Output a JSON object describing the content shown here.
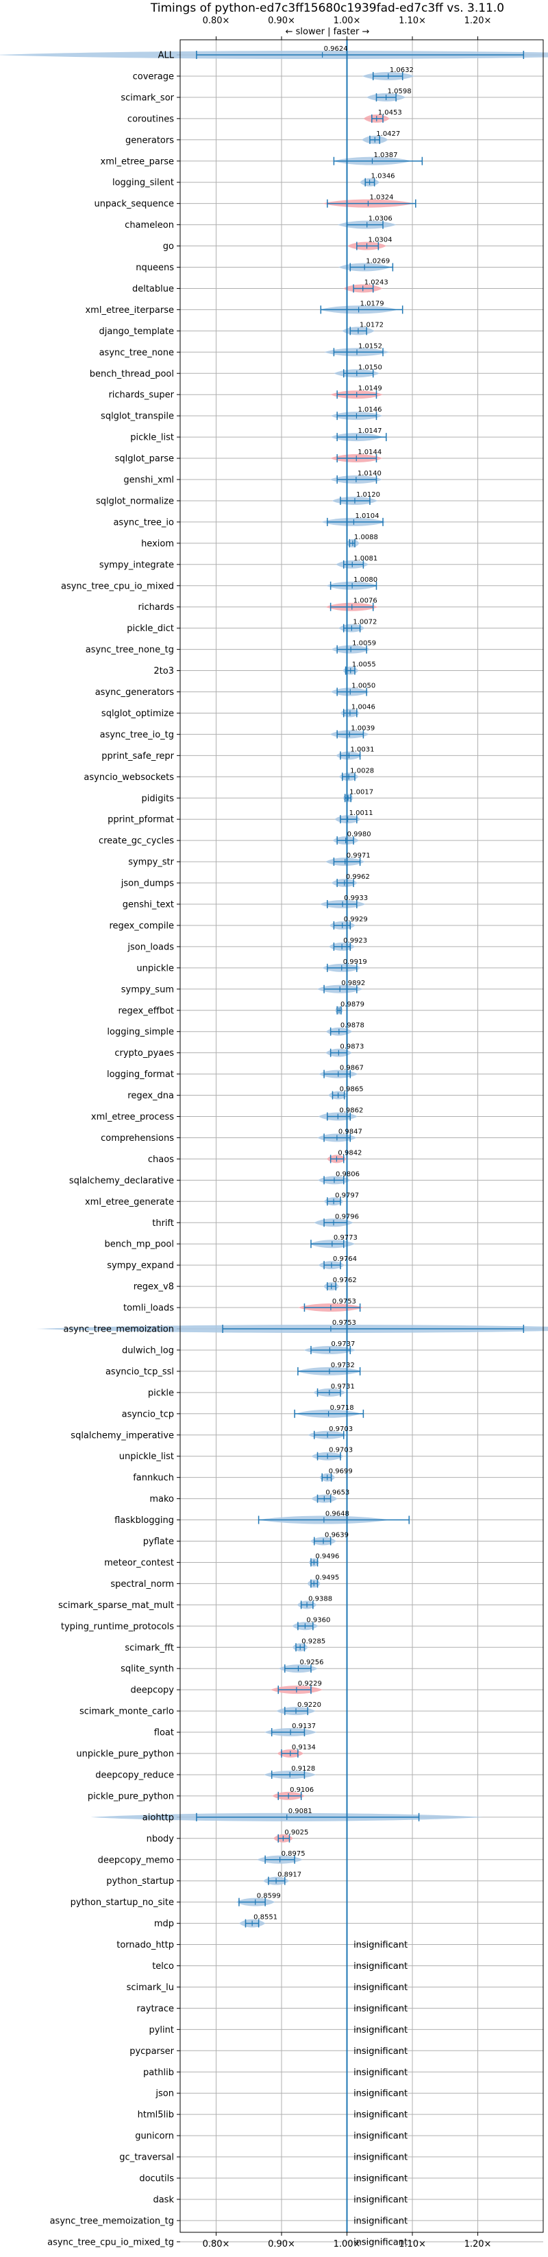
{
  "chart_data": {
    "type": "violin",
    "title": "Timings of python-ed7c3ff15680c1939fad-ed7c3ff vs. 3.11.0",
    "direction_label": "← slower | faster →",
    "x_ticks": [
      {
        "value": 0.8,
        "label": "0.80×"
      },
      {
        "value": 0.9,
        "label": "0.90×"
      },
      {
        "value": 1.0,
        "label": "1.00×"
      },
      {
        "value": 1.1,
        "label": "1.10×"
      },
      {
        "value": 1.2,
        "label": "1.20×"
      }
    ],
    "xlim": [
      0.745,
      1.3
    ],
    "reference_line": 1.0,
    "grid": true,
    "insignificant_label": "insignificant",
    "colors": {
      "violin_normal": "#a9c8e4",
      "violin_significant": "#f4a6ab",
      "accent": "#1f77b4",
      "grid": "#b0b0b0"
    },
    "benchmarks": [
      {
        "name": "ALL",
        "value": 0.9624,
        "label": "0.9624",
        "low": 0.77,
        "high": 1.27,
        "spread": 0.5,
        "sig": false
      },
      {
        "name": "coverage",
        "value": 1.0632,
        "label": "1.0632",
        "low": 1.04,
        "high": 1.085,
        "spread": 0.04,
        "sig": false
      },
      {
        "name": "scimark_sor",
        "value": 1.0598,
        "label": "1.0598",
        "low": 1.045,
        "high": 1.075,
        "spread": 0.03,
        "sig": false
      },
      {
        "name": "coroutines",
        "value": 1.0453,
        "label": "1.0453",
        "low": 1.038,
        "high": 1.055,
        "spread": 0.02,
        "sig": true
      },
      {
        "name": "generators",
        "value": 1.0427,
        "label": "1.0427",
        "low": 1.035,
        "high": 1.05,
        "spread": 0.02,
        "sig": false
      },
      {
        "name": "xml_etree_parse",
        "value": 1.0387,
        "label": "1.0387",
        "low": 0.98,
        "high": 1.115,
        "spread": 0.06,
        "sig": false
      },
      {
        "name": "logging_silent",
        "value": 1.0346,
        "label": "1.0346",
        "low": 1.028,
        "high": 1.042,
        "spread": 0.015,
        "sig": false
      },
      {
        "name": "unpack_sequence",
        "value": 1.0324,
        "label": "1.0324",
        "low": 0.97,
        "high": 1.105,
        "spread": 0.07,
        "sig": true
      },
      {
        "name": "chameleon",
        "value": 1.0306,
        "label": "1.0306",
        "low": 1.0,
        "high": 1.055,
        "spread": 0.045,
        "sig": false
      },
      {
        "name": "go",
        "value": 1.0304,
        "label": "1.0304",
        "low": 1.015,
        "high": 1.048,
        "spread": 0.03,
        "sig": true
      },
      {
        "name": "nqueens",
        "value": 1.0269,
        "label": "1.0269",
        "low": 1.005,
        "high": 1.07,
        "spread": 0.04,
        "sig": false
      },
      {
        "name": "deltablue",
        "value": 1.0243,
        "label": "1.0243",
        "low": 1.01,
        "high": 1.04,
        "spread": 0.03,
        "sig": true
      },
      {
        "name": "xml_etree_iterparse",
        "value": 1.0179,
        "label": "1.0179",
        "low": 0.96,
        "high": 1.085,
        "spread": 0.06,
        "sig": false
      },
      {
        "name": "django_template",
        "value": 1.0172,
        "label": "1.0172",
        "low": 1.005,
        "high": 1.03,
        "spread": 0.025,
        "sig": false
      },
      {
        "name": "async_tree_none",
        "value": 1.0152,
        "label": "1.0152",
        "low": 0.98,
        "high": 1.055,
        "spread": 0.05,
        "sig": false
      },
      {
        "name": "bench_thread_pool",
        "value": 1.015,
        "label": "1.0150",
        "low": 0.995,
        "high": 1.04,
        "spread": 0.035,
        "sig": false
      },
      {
        "name": "richards_super",
        "value": 1.0149,
        "label": "1.0149",
        "low": 0.985,
        "high": 1.045,
        "spread": 0.04,
        "sig": true
      },
      {
        "name": "sqlglot_transpile",
        "value": 1.0146,
        "label": "1.0146",
        "low": 0.985,
        "high": 1.045,
        "spread": 0.04,
        "sig": false
      },
      {
        "name": "pickle_list",
        "value": 1.0147,
        "label": "1.0147",
        "low": 0.985,
        "high": 1.06,
        "spread": 0.04,
        "sig": false
      },
      {
        "name": "sqlglot_parse",
        "value": 1.0144,
        "label": "1.0144",
        "low": 0.985,
        "high": 1.045,
        "spread": 0.04,
        "sig": true
      },
      {
        "name": "genshi_xml",
        "value": 1.014,
        "label": "1.0140",
        "low": 0.985,
        "high": 1.045,
        "spread": 0.04,
        "sig": false
      },
      {
        "name": "sqlglot_normalize",
        "value": 1.012,
        "label": "1.0120",
        "low": 0.99,
        "high": 1.035,
        "spread": 0.035,
        "sig": false
      },
      {
        "name": "async_tree_io",
        "value": 1.0104,
        "label": "1.0104",
        "low": 0.97,
        "high": 1.055,
        "spread": 0.05,
        "sig": false
      },
      {
        "name": "hexiom",
        "value": 1.0088,
        "label": "1.0088",
        "low": 1.004,
        "high": 1.012,
        "spread": 0.01,
        "sig": false
      },
      {
        "name": "sympy_integrate",
        "value": 1.0081,
        "label": "1.0081",
        "low": 0.995,
        "high": 1.025,
        "spread": 0.025,
        "sig": false
      },
      {
        "name": "async_tree_cpu_io_mixed",
        "value": 1.008,
        "label": "1.0080",
        "low": 0.975,
        "high": 1.045,
        "spread": 0.04,
        "sig": false
      },
      {
        "name": "richards",
        "value": 1.0076,
        "label": "1.0076",
        "low": 0.975,
        "high": 1.04,
        "spread": 0.04,
        "sig": true
      },
      {
        "name": "pickle_dict",
        "value": 1.0072,
        "label": "1.0072",
        "low": 0.995,
        "high": 1.02,
        "spread": 0.02,
        "sig": false
      },
      {
        "name": "async_tree_none_tg",
        "value": 1.0059,
        "label": "1.0059",
        "low": 0.985,
        "high": 1.03,
        "spread": 0.03,
        "sig": false
      },
      {
        "name": "2to3",
        "value": 1.0055,
        "label": "1.0055",
        "low": 0.998,
        "high": 1.012,
        "spread": 0.012,
        "sig": false
      },
      {
        "name": "async_generators",
        "value": 1.005,
        "label": "1.0050",
        "low": 0.985,
        "high": 1.03,
        "spread": 0.03,
        "sig": false
      },
      {
        "name": "sqlglot_optimize",
        "value": 1.0046,
        "label": "1.0046",
        "low": 0.995,
        "high": 1.015,
        "spread": 0.015,
        "sig": false
      },
      {
        "name": "async_tree_io_tg",
        "value": 1.0039,
        "label": "1.0039",
        "low": 0.985,
        "high": 1.025,
        "spread": 0.03,
        "sig": false
      },
      {
        "name": "pprint_safe_repr",
        "value": 1.0031,
        "label": "1.0031",
        "low": 0.99,
        "high": 1.02,
        "spread": 0.02,
        "sig": false
      },
      {
        "name": "asyncio_websockets",
        "value": 1.0028,
        "label": "1.0028",
        "low": 0.993,
        "high": 1.012,
        "spread": 0.015,
        "sig": false
      },
      {
        "name": "pidigits",
        "value": 1.0017,
        "label": "1.0017",
        "low": 0.997,
        "high": 1.006,
        "spread": 0.008,
        "sig": false
      },
      {
        "name": "pprint_pformat",
        "value": 1.0011,
        "label": "1.0011",
        "low": 0.99,
        "high": 1.015,
        "spread": 0.02,
        "sig": false
      },
      {
        "name": "create_gc_cycles",
        "value": 0.998,
        "label": "0.9980",
        "low": 0.985,
        "high": 1.01,
        "spread": 0.02,
        "sig": false
      },
      {
        "name": "sympy_str",
        "value": 0.9971,
        "label": "0.9971",
        "low": 0.98,
        "high": 1.02,
        "spread": 0.03,
        "sig": false
      },
      {
        "name": "json_dumps",
        "value": 0.9962,
        "label": "0.9962",
        "low": 0.985,
        "high": 1.01,
        "spread": 0.02,
        "sig": false
      },
      {
        "name": "genshi_text",
        "value": 0.9933,
        "label": "0.9933",
        "low": 0.97,
        "high": 1.015,
        "spread": 0.035,
        "sig": false
      },
      {
        "name": "regex_compile",
        "value": 0.9929,
        "label": "0.9929",
        "low": 0.98,
        "high": 1.005,
        "spread": 0.02,
        "sig": false
      },
      {
        "name": "json_loads",
        "value": 0.9923,
        "label": "0.9923",
        "low": 0.98,
        "high": 1.005,
        "spread": 0.02,
        "sig": false
      },
      {
        "name": "unpickle",
        "value": 0.9919,
        "label": "0.9919",
        "low": 0.97,
        "high": 1.015,
        "spread": 0.03,
        "sig": false
      },
      {
        "name": "sympy_sum",
        "value": 0.9892,
        "label": "0.9892",
        "low": 0.965,
        "high": 1.015,
        "spread": 0.035,
        "sig": false
      },
      {
        "name": "regex_effbot",
        "value": 0.9879,
        "label": "0.9879",
        "low": 0.985,
        "high": 0.991,
        "spread": 0.006,
        "sig": false
      },
      {
        "name": "logging_simple",
        "value": 0.9878,
        "label": "0.9878",
        "low": 0.975,
        "high": 1.0,
        "spread": 0.02,
        "sig": false
      },
      {
        "name": "crypto_pyaes",
        "value": 0.9873,
        "label": "0.9873",
        "low": 0.975,
        "high": 1.0,
        "spread": 0.02,
        "sig": false
      },
      {
        "name": "logging_format",
        "value": 0.9867,
        "label": "0.9867",
        "low": 0.965,
        "high": 1.005,
        "spread": 0.03,
        "sig": false
      },
      {
        "name": "regex_dna",
        "value": 0.9865,
        "label": "0.9865",
        "low": 0.978,
        "high": 0.996,
        "spread": 0.015,
        "sig": false
      },
      {
        "name": "xml_etree_process",
        "value": 0.9862,
        "label": "0.9862",
        "low": 0.97,
        "high": 1.005,
        "spread": 0.03,
        "sig": false
      },
      {
        "name": "comprehensions",
        "value": 0.9847,
        "label": "0.9847",
        "low": 0.965,
        "high": 1.005,
        "spread": 0.03,
        "sig": false
      },
      {
        "name": "chaos",
        "value": 0.9842,
        "label": "0.9842",
        "low": 0.975,
        "high": 0.995,
        "spread": 0.015,
        "sig": true
      },
      {
        "name": "sqlalchemy_declarative",
        "value": 0.9806,
        "label": "0.9806",
        "low": 0.965,
        "high": 0.995,
        "spread": 0.025,
        "sig": false
      },
      {
        "name": "xml_etree_generate",
        "value": 0.9797,
        "label": "0.9797",
        "low": 0.97,
        "high": 0.99,
        "spread": 0.015,
        "sig": false
      },
      {
        "name": "thrift",
        "value": 0.9796,
        "label": "0.9796",
        "low": 0.965,
        "high": 1.0,
        "spread": 0.03,
        "sig": false
      },
      {
        "name": "bench_mp_pool",
        "value": 0.9773,
        "label": "0.9773",
        "low": 0.945,
        "high": 0.995,
        "spread": 0.035,
        "sig": false
      },
      {
        "name": "sympy_expand",
        "value": 0.9764,
        "label": "0.9764",
        "low": 0.965,
        "high": 0.99,
        "spread": 0.02,
        "sig": false
      },
      {
        "name": "regex_v8",
        "value": 0.9762,
        "label": "0.9762",
        "low": 0.97,
        "high": 0.983,
        "spread": 0.012,
        "sig": false
      },
      {
        "name": "tomli_loads",
        "value": 0.9753,
        "label": "0.9753",
        "low": 0.935,
        "high": 1.02,
        "spread": 0.05,
        "sig": true
      },
      {
        "name": "async_tree_memoization",
        "value": 0.9753,
        "label": "0.9753",
        "low": 0.81,
        "high": 1.27,
        "spread": 0.45,
        "sig": false
      },
      {
        "name": "dulwich_log",
        "value": 0.9737,
        "label": "0.9737",
        "low": 0.945,
        "high": 1.005,
        "spread": 0.04,
        "sig": false
      },
      {
        "name": "asyncio_tcp_ssl",
        "value": 0.9732,
        "label": "0.9732",
        "low": 0.925,
        "high": 1.02,
        "spread": 0.05,
        "sig": false
      },
      {
        "name": "pickle",
        "value": 0.9731,
        "label": "0.9731",
        "low": 0.955,
        "high": 0.99,
        "spread": 0.025,
        "sig": false
      },
      {
        "name": "asyncio_tcp",
        "value": 0.9718,
        "label": "0.9718",
        "low": 0.92,
        "high": 1.025,
        "spread": 0.05,
        "sig": false
      },
      {
        "name": "sqlalchemy_imperative",
        "value": 0.9703,
        "label": "0.9703",
        "low": 0.95,
        "high": 0.995,
        "spread": 0.03,
        "sig": false
      },
      {
        "name": "unpickle_list",
        "value": 0.9703,
        "label": "0.9703",
        "low": 0.955,
        "high": 0.99,
        "spread": 0.025,
        "sig": false
      },
      {
        "name": "fannkuch",
        "value": 0.9699,
        "label": "0.9699",
        "low": 0.962,
        "high": 0.976,
        "spread": 0.012,
        "sig": false
      },
      {
        "name": "mako",
        "value": 0.9653,
        "label": "0.9653",
        "low": 0.955,
        "high": 0.975,
        "spread": 0.02,
        "sig": false
      },
      {
        "name": "flaskblogging",
        "value": 0.9648,
        "label": "0.9648",
        "low": 0.865,
        "high": 1.095,
        "spread": 0.1,
        "sig": false
      },
      {
        "name": "pyflate",
        "value": 0.9639,
        "label": "0.9639",
        "low": 0.95,
        "high": 0.975,
        "spread": 0.02,
        "sig": false
      },
      {
        "name": "meteor_contest",
        "value": 0.9496,
        "label": "0.9496",
        "low": 0.945,
        "high": 0.955,
        "spread": 0.008,
        "sig": false
      },
      {
        "name": "spectral_norm",
        "value": 0.9495,
        "label": "0.9495",
        "low": 0.945,
        "high": 0.955,
        "spread": 0.01,
        "sig": false
      },
      {
        "name": "scimark_sparse_mat_mult",
        "value": 0.9388,
        "label": "0.9388",
        "low": 0.93,
        "high": 0.948,
        "spread": 0.015,
        "sig": false
      },
      {
        "name": "typing_runtime_protocols",
        "value": 0.936,
        "label": "0.9360",
        "low": 0.925,
        "high": 0.948,
        "spread": 0.02,
        "sig": false
      },
      {
        "name": "scimark_fft",
        "value": 0.9285,
        "label": "0.9285",
        "low": 0.922,
        "high": 0.935,
        "spread": 0.012,
        "sig": false
      },
      {
        "name": "sqlite_synth",
        "value": 0.9256,
        "label": "0.9256",
        "low": 0.905,
        "high": 0.945,
        "spread": 0.03,
        "sig": false
      },
      {
        "name": "deepcopy",
        "value": 0.9229,
        "label": "0.9229",
        "low": 0.895,
        "high": 0.945,
        "spread": 0.04,
        "sig": true
      },
      {
        "name": "scimark_monte_carlo",
        "value": 0.922,
        "label": "0.9220",
        "low": 0.905,
        "high": 0.94,
        "spread": 0.03,
        "sig": false
      },
      {
        "name": "float",
        "value": 0.9137,
        "label": "0.9137",
        "low": 0.885,
        "high": 0.935,
        "spread": 0.04,
        "sig": false
      },
      {
        "name": "unpickle_pure_python",
        "value": 0.9134,
        "label": "0.9134",
        "low": 0.9,
        "high": 0.925,
        "spread": 0.02,
        "sig": true
      },
      {
        "name": "deepcopy_reduce",
        "value": 0.9128,
        "label": "0.9128",
        "low": 0.885,
        "high": 0.935,
        "spread": 0.04,
        "sig": false
      },
      {
        "name": "pickle_pure_python",
        "value": 0.9106,
        "label": "0.9106",
        "low": 0.895,
        "high": 0.93,
        "spread": 0.025,
        "sig": true
      },
      {
        "name": "aiohttp",
        "value": 0.9081,
        "label": "0.9081",
        "low": 0.77,
        "high": 1.11,
        "spread": 0.3,
        "sig": false
      },
      {
        "name": "nbody",
        "value": 0.9025,
        "label": "0.9025",
        "low": 0.895,
        "high": 0.912,
        "spread": 0.015,
        "sig": true
      },
      {
        "name": "deepcopy_memo",
        "value": 0.8975,
        "label": "0.8975",
        "low": 0.875,
        "high": 0.92,
        "spread": 0.035,
        "sig": false
      },
      {
        "name": "python_startup",
        "value": 0.8917,
        "label": "0.8917",
        "low": 0.88,
        "high": 0.905,
        "spread": 0.02,
        "sig": false
      },
      {
        "name": "python_startup_no_site",
        "value": 0.8599,
        "label": "0.8599",
        "low": 0.835,
        "high": 0.875,
        "spread": 0.03,
        "sig": false
      },
      {
        "name": "mdp",
        "value": 0.8551,
        "label": "0.8551",
        "low": 0.845,
        "high": 0.865,
        "spread": 0.02,
        "sig": false
      },
      {
        "name": "tornado_http",
        "insignificant": true
      },
      {
        "name": "telco",
        "insignificant": true
      },
      {
        "name": "scimark_lu",
        "insignificant": true
      },
      {
        "name": "raytrace",
        "insignificant": true
      },
      {
        "name": "pylint",
        "insignificant": true
      },
      {
        "name": "pycparser",
        "insignificant": true
      },
      {
        "name": "pathlib",
        "insignificant": true
      },
      {
        "name": "json",
        "insignificant": true
      },
      {
        "name": "html5lib",
        "insignificant": true
      },
      {
        "name": "gunicorn",
        "insignificant": true
      },
      {
        "name": "gc_traversal",
        "insignificant": true
      },
      {
        "name": "docutils",
        "insignificant": true
      },
      {
        "name": "dask",
        "insignificant": true
      },
      {
        "name": "async_tree_memoization_tg",
        "insignificant": true
      },
      {
        "name": "async_tree_cpu_io_mixed_tg",
        "insignificant": true
      }
    ]
  }
}
